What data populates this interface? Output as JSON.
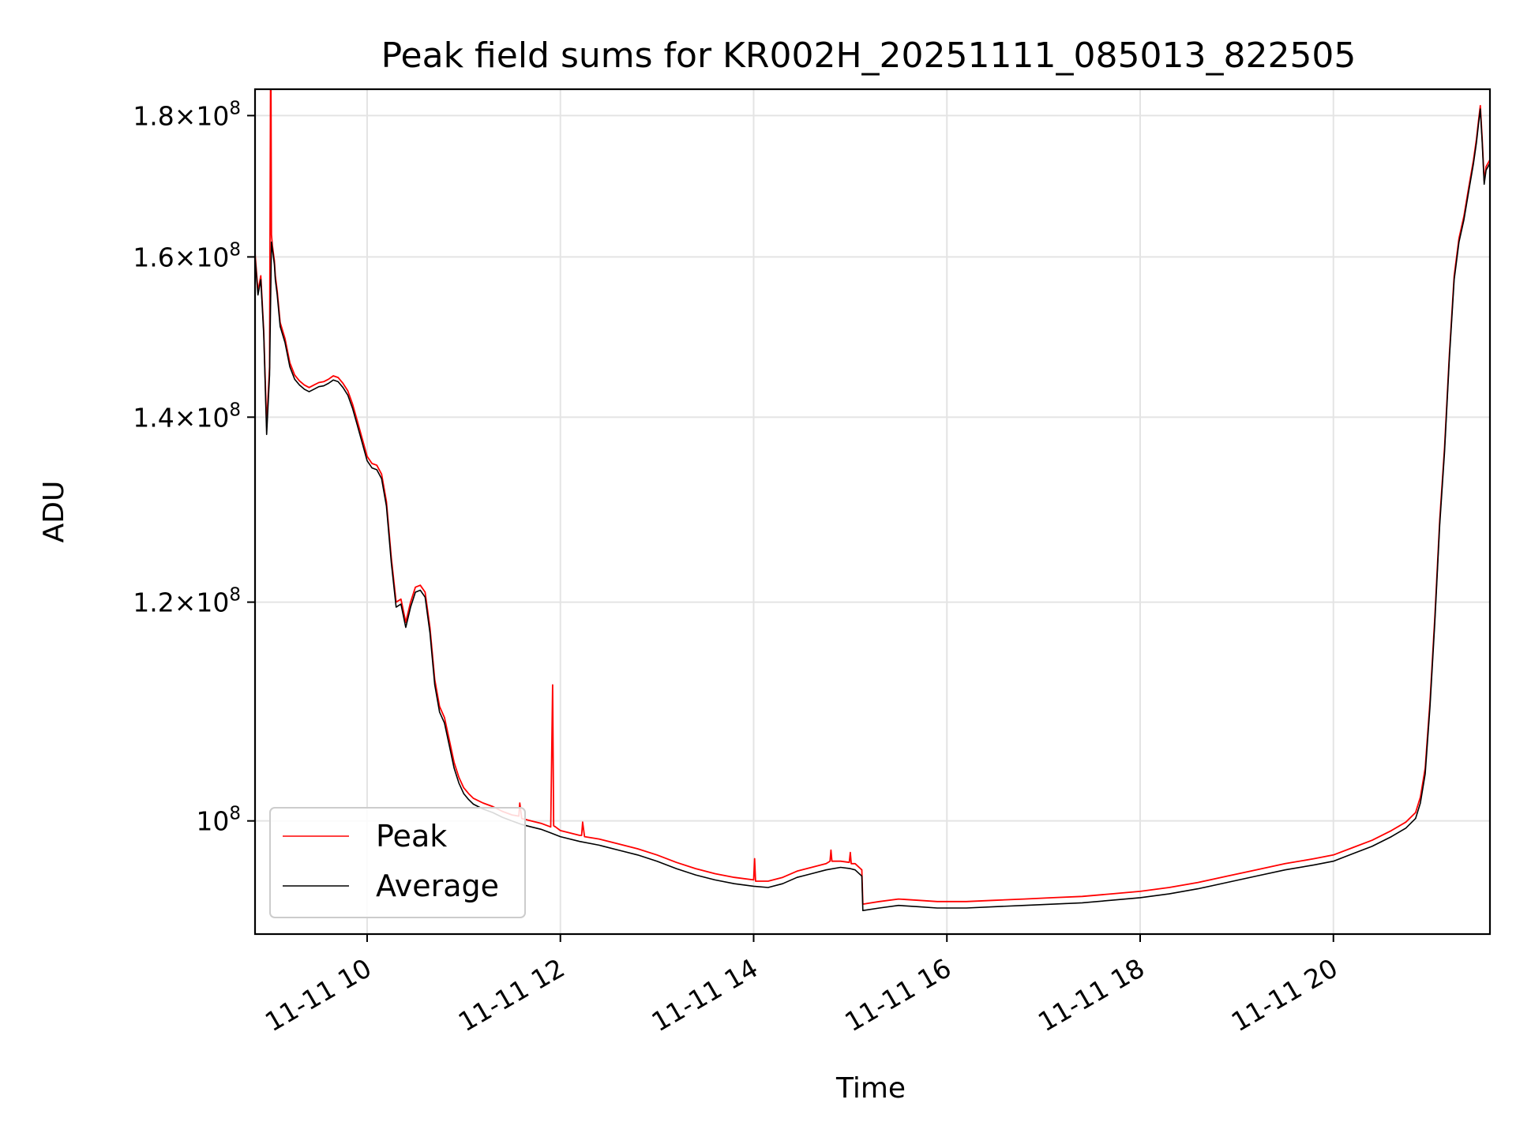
{
  "chart_data": {
    "type": "line",
    "title": "Peak field sums for KR002H_20251111_085013_822505",
    "xlabel": "Time",
    "ylabel": "ADU",
    "x_unit": "hours since 11-11 00:00",
    "xlim": [
      8.84,
      21.62
    ],
    "ylim": [
      91000000,
      184000000
    ],
    "yscale": "log",
    "grid": true,
    "legend_position": "lower-left",
    "x_ticks": [
      {
        "value": 10,
        "label": "11-11 10"
      },
      {
        "value": 12,
        "label": "11-11 12"
      },
      {
        "value": 14,
        "label": "11-11 14"
      },
      {
        "value": 16,
        "label": "11-11 16"
      },
      {
        "value": 18,
        "label": "11-11 18"
      },
      {
        "value": 20,
        "label": "11-11 20"
      }
    ],
    "y_ticks": [
      {
        "value": 100000000,
        "mantissa": "",
        "exp": "8"
      },
      {
        "value": 120000000,
        "mantissa": "1.2",
        "exp": "8"
      },
      {
        "value": 140000000,
        "mantissa": "1.4",
        "exp": "8"
      },
      {
        "value": 160000000,
        "mantissa": "1.6",
        "exp": "8"
      },
      {
        "value": 180000000,
        "mantissa": "1.8",
        "exp": "8"
      }
    ],
    "series": [
      {
        "name": "Average",
        "color": "#000000",
        "x": [
          8.84,
          8.87,
          8.9,
          8.93,
          8.96,
          8.99,
          9.01,
          9.02,
          9.04,
          9.05,
          9.07,
          9.1,
          9.15,
          9.2,
          9.25,
          9.3,
          9.35,
          9.4,
          9.45,
          9.5,
          9.55,
          9.6,
          9.65,
          9.7,
          9.75,
          9.8,
          9.85,
          9.9,
          9.95,
          10.0,
          10.05,
          10.1,
          10.15,
          10.2,
          10.25,
          10.3,
          10.35,
          10.4,
          10.45,
          10.5,
          10.55,
          10.6,
          10.65,
          10.7,
          10.75,
          10.8,
          10.85,
          10.9,
          10.95,
          11.0,
          11.05,
          11.1,
          11.2,
          11.3,
          11.4,
          11.5,
          11.6,
          11.7,
          11.8,
          11.9,
          12.0,
          12.2,
          12.4,
          12.6,
          12.8,
          13.0,
          13.2,
          13.4,
          13.6,
          13.8,
          14.0,
          14.15,
          14.3,
          14.45,
          14.6,
          14.75,
          14.9,
          15.0,
          15.05,
          15.12,
          15.13,
          15.3,
          15.5,
          15.7,
          15.9,
          16.2,
          16.5,
          16.8,
          17.1,
          17.4,
          17.7,
          18.0,
          18.3,
          18.6,
          18.9,
          19.2,
          19.5,
          19.8,
          20.0,
          20.2,
          20.4,
          20.6,
          20.75,
          20.85,
          20.9,
          20.95,
          21.0,
          21.05,
          21.1,
          21.15,
          21.2,
          21.25,
          21.3,
          21.35,
          21.4,
          21.45,
          21.48,
          21.5,
          21.52,
          21.54,
          21.56,
          21.58,
          21.62
        ],
        "y": [
          160000000,
          155000000,
          157000000,
          150000000,
          138000000,
          145000000,
          162000000,
          161000000,
          159000000,
          157000000,
          155000000,
          151000000,
          149000000,
          146000000,
          144500000,
          143800000,
          143300000,
          143000000,
          143300000,
          143600000,
          143700000,
          144000000,
          144400000,
          144200000,
          143500000,
          142600000,
          141000000,
          139000000,
          137000000,
          135000000,
          134200000,
          134000000,
          133000000,
          130000000,
          124000000,
          119500000,
          119800000,
          117500000,
          119500000,
          121000000,
          121200000,
          120500000,
          117000000,
          112000000,
          109500000,
          108500000,
          106500000,
          104500000,
          103200000,
          102300000,
          101800000,
          101400000,
          101000000,
          100700000,
          100300000,
          100000000,
          99700000,
          99500000,
          99300000,
          99000000,
          98700000,
          98300000,
          98000000,
          97600000,
          97200000,
          96700000,
          96100000,
          95600000,
          95200000,
          94900000,
          94700000,
          94600000,
          94900000,
          95400000,
          95700000,
          96000000,
          96200000,
          96100000,
          96000000,
          95500000,
          92800000,
          93000000,
          93200000,
          93100000,
          93000000,
          93000000,
          93100000,
          93200000,
          93300000,
          93400000,
          93600000,
          93800000,
          94100000,
          94500000,
          95000000,
          95500000,
          96000000,
          96400000,
          96700000,
          97300000,
          97900000,
          98700000,
          99400000,
          100200000,
          101500000,
          104000000,
          110000000,
          118000000,
          128000000,
          136000000,
          147000000,
          157000000,
          162000000,
          165000000,
          169000000,
          173000000,
          176000000,
          178500000,
          181000000,
          176000000,
          170000000,
          172000000,
          173000000
        ]
      },
      {
        "name": "Peak",
        "color": "#ff0000",
        "x": [
          8.84,
          8.87,
          8.9,
          8.93,
          8.96,
          8.99,
          9.0,
          9.005,
          9.01,
          9.02,
          9.04,
          9.05,
          9.07,
          9.1,
          9.15,
          9.2,
          9.25,
          9.3,
          9.35,
          9.4,
          9.45,
          9.5,
          9.55,
          9.6,
          9.65,
          9.7,
          9.75,
          9.8,
          9.85,
          9.9,
          9.95,
          10.0,
          10.05,
          10.1,
          10.15,
          10.2,
          10.25,
          10.3,
          10.35,
          10.4,
          10.45,
          10.5,
          10.55,
          10.6,
          10.65,
          10.7,
          10.75,
          10.8,
          10.85,
          10.9,
          10.95,
          11.0,
          11.05,
          11.1,
          11.2,
          11.3,
          11.4,
          11.5,
          11.57,
          11.58,
          11.6,
          11.7,
          11.8,
          11.9,
          11.92,
          11.93,
          11.95,
          12.0,
          12.2,
          12.22,
          12.23,
          12.25,
          12.4,
          12.6,
          12.8,
          13.0,
          13.2,
          13.4,
          13.6,
          13.8,
          14.0,
          14.01,
          14.02,
          14.03,
          14.15,
          14.3,
          14.45,
          14.6,
          14.75,
          14.79,
          14.8,
          14.81,
          14.9,
          14.99,
          15.0,
          15.01,
          15.05,
          15.12,
          15.13,
          15.3,
          15.5,
          15.7,
          15.9,
          16.2,
          16.5,
          16.8,
          17.1,
          17.4,
          17.7,
          18.0,
          18.3,
          18.6,
          18.9,
          19.2,
          19.5,
          19.8,
          20.0,
          20.2,
          20.4,
          20.6,
          20.75,
          20.85,
          20.9,
          20.95,
          21.0,
          21.05,
          21.1,
          21.15,
          21.2,
          21.25,
          21.3,
          21.35,
          21.4,
          21.45,
          21.48,
          21.5,
          21.52,
          21.54,
          21.56,
          21.58,
          21.62
        ],
        "y": [
          160500000,
          155500000,
          157500000,
          150500000,
          139000000,
          146000000,
          184000000,
          184000000,
          163000000,
          161500000,
          159500000,
          157500000,
          155500000,
          151500000,
          149500000,
          146500000,
          145000000,
          144300000,
          143800000,
          143500000,
          143800000,
          144100000,
          144200000,
          144500000,
          144900000,
          144700000,
          144000000,
          143100000,
          141500000,
          139500000,
          137500000,
          135500000,
          134700000,
          134500000,
          133500000,
          130500000,
          124500000,
          120000000,
          120300000,
          118000000,
          120000000,
          121500000,
          121700000,
          121000000,
          117500000,
          112500000,
          110000000,
          109000000,
          107000000,
          105000000,
          103700000,
          102800000,
          102300000,
          101900000,
          101500000,
          101200000,
          100800000,
          100500000,
          100400000,
          101500000,
          100200000,
          100000000,
          99800000,
          99500000,
          112000000,
          99600000,
          99500000,
          99200000,
          98800000,
          98800000,
          99900000,
          98700000,
          98500000,
          98100000,
          97700000,
          97200000,
          96600000,
          96100000,
          95700000,
          95400000,
          95200000,
          96900000,
          95100000,
          95100000,
          95100000,
          95400000,
          95900000,
          96200000,
          96500000,
          96700000,
          97600000,
          96700000,
          96700000,
          96600000,
          97400000,
          96500000,
          96500000,
          96000000,
          93300000,
          93500000,
          93700000,
          93600000,
          93500000,
          93500000,
          93600000,
          93700000,
          93800000,
          93900000,
          94100000,
          94300000,
          94600000,
          95000000,
          95500000,
          96000000,
          96500000,
          96900000,
          97200000,
          97800000,
          98400000,
          99200000,
          99900000,
          100700000,
          102000000,
          104500000,
          110500000,
          118500000,
          128500000,
          136500000,
          147500000,
          157500000,
          162500000,
          165500000,
          169500000,
          173500000,
          176500000,
          179000000,
          181500000,
          176500000,
          170500000,
          172500000,
          173500000
        ]
      }
    ],
    "legend": [
      {
        "name": "Peak",
        "color": "#ff0000"
      },
      {
        "name": "Average",
        "color": "#000000"
      }
    ]
  }
}
